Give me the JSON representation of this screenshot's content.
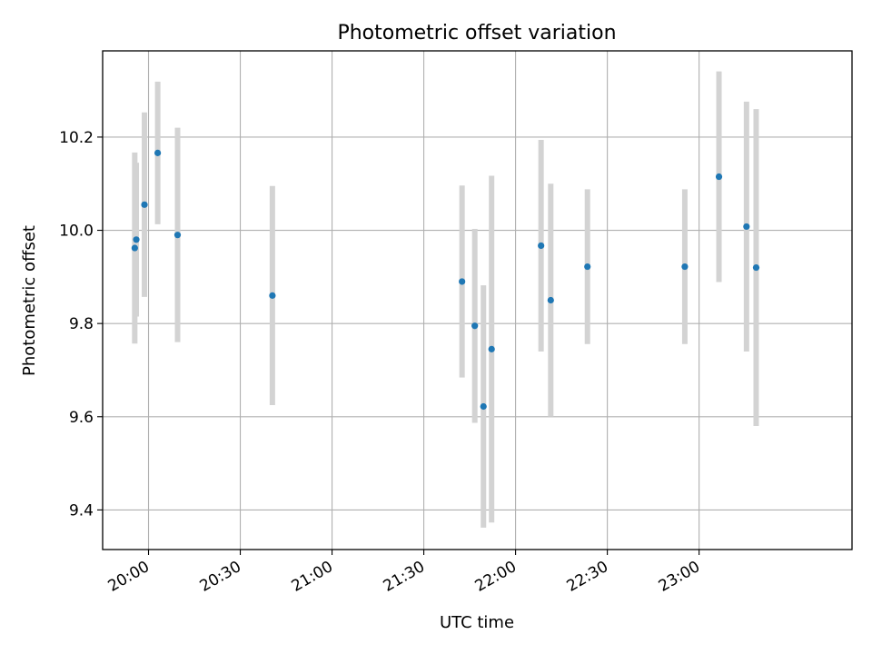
{
  "chart_data": {
    "type": "scatter",
    "title": "Photometric offset variation",
    "xlabel": "UTC time",
    "ylabel": "Photometric offset",
    "x_is_time": true,
    "xlim": [
      "19:45",
      "23:50"
    ],
    "ylim": [
      9.315,
      10.385
    ],
    "xticks": [
      "20:00",
      "20:30",
      "21:00",
      "21:30",
      "22:00",
      "22:30",
      "23:00"
    ],
    "yticks": [
      9.4,
      9.6,
      9.8,
      10.0,
      10.2
    ],
    "ytick_labels": [
      "9.4",
      "9.6",
      "9.8",
      "10.0",
      "10.2"
    ],
    "grid": true,
    "point_color": "#1f77b4",
    "errorbar_color": "#d3d3d3",
    "points": [
      {
        "x": "19:55:30",
        "y": 9.962,
        "err": 0.205
      },
      {
        "x": "19:56:00",
        "y": 9.98,
        "err": 0.165
      },
      {
        "x": "19:58:40",
        "y": 10.055,
        "err": 0.198
      },
      {
        "x": "20:03:00",
        "y": 10.166,
        "err": 0.153
      },
      {
        "x": "20:09:30",
        "y": 9.99,
        "err": 0.23
      },
      {
        "x": "20:40:30",
        "y": 9.86,
        "err": 0.235
      },
      {
        "x": "21:42:30",
        "y": 9.89,
        "err": 0.206
      },
      {
        "x": "21:46:40",
        "y": 9.795,
        "err": 0.208
      },
      {
        "x": "21:49:30",
        "y": 9.622,
        "err": 0.26
      },
      {
        "x": "21:52:10",
        "y": 9.745,
        "err": 0.372
      },
      {
        "x": "22:08:20",
        "y": 9.967,
        "err": 0.227
      },
      {
        "x": "22:11:30",
        "y": 9.85,
        "err": 0.25
      },
      {
        "x": "22:23:30",
        "y": 9.922,
        "err": 0.166
      },
      {
        "x": "22:55:20",
        "y": 9.922,
        "err": 0.166
      },
      {
        "x": "23:06:30",
        "y": 10.115,
        "err": 0.226
      },
      {
        "x": "23:15:30",
        "y": 10.008,
        "err": 0.268
      },
      {
        "x": "23:18:40",
        "y": 9.92,
        "err": 0.34
      }
    ]
  }
}
